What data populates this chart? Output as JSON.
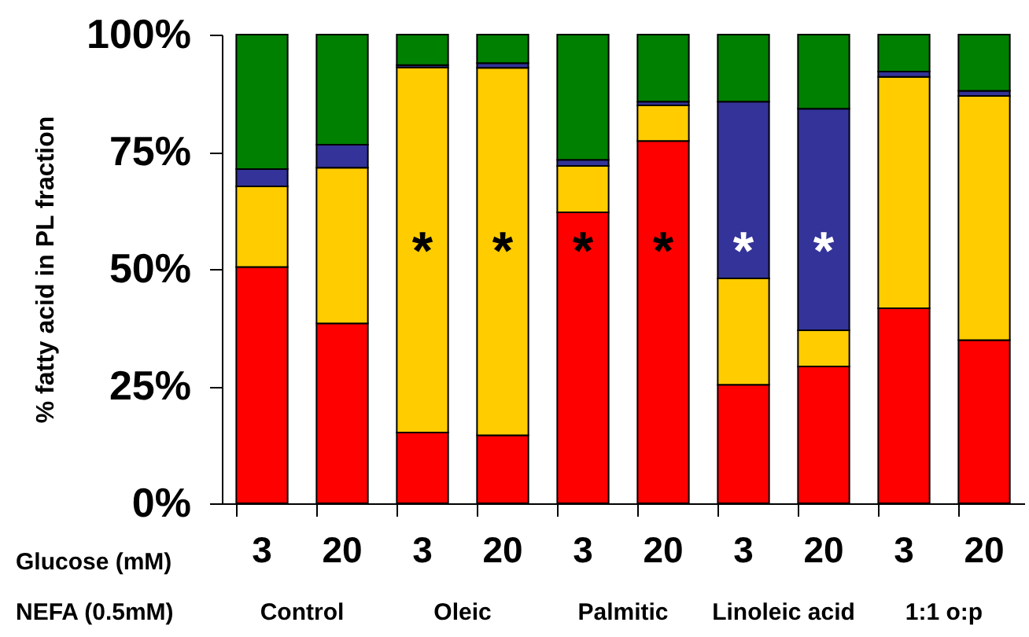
{
  "chart_data": {
    "type": "bar",
    "stacked": true,
    "ylabel": "% fatty acid in PL fraction",
    "categories": [
      "3",
      "20",
      "3",
      "20",
      "3",
      "20",
      "3",
      "20",
      "3",
      "20"
    ],
    "series": [
      {
        "color": "#ff0000",
        "values": [
          50.4,
          38.4,
          15.1,
          14.5,
          62.1,
          77.3,
          25.3,
          29.2,
          41.6,
          34.8
        ]
      },
      {
        "color": "#ffcc00",
        "values": [
          17.2,
          33.2,
          77.9,
          78.4,
          9.9,
          7.6,
          22.7,
          7.7,
          49.4,
          52.1
        ]
      },
      {
        "color": "#333399",
        "values": [
          3.7,
          4.9,
          0.5,
          1.0,
          1.3,
          0.8,
          37.7,
          47.3,
          1.1,
          1.1
        ]
      },
      {
        "color": "#008000",
        "values": [
          28.7,
          23.5,
          6.5,
          6.1,
          26.7,
          14.3,
          14.3,
          15.8,
          7.9,
          12.0
        ]
      }
    ],
    "ylim": [
      0,
      100
    ],
    "yticks": [
      {
        "value": 0,
        "label": "0%"
      },
      {
        "value": 25,
        "label": "25%"
      },
      {
        "value": 50,
        "label": "50%"
      },
      {
        "value": 75,
        "label": "75%"
      },
      {
        "value": 100,
        "label": "100%"
      }
    ],
    "annotations": [
      "Glucose (mM)",
      "NEFA (0.5mM)",
      "Control",
      "Oleic",
      "Palmitic",
      "Linoleic acid",
      "1:1 o:p",
      "*",
      "*",
      "*",
      "*",
      "*",
      "*"
    ],
    "grid": false,
    "legend": false
  }
}
